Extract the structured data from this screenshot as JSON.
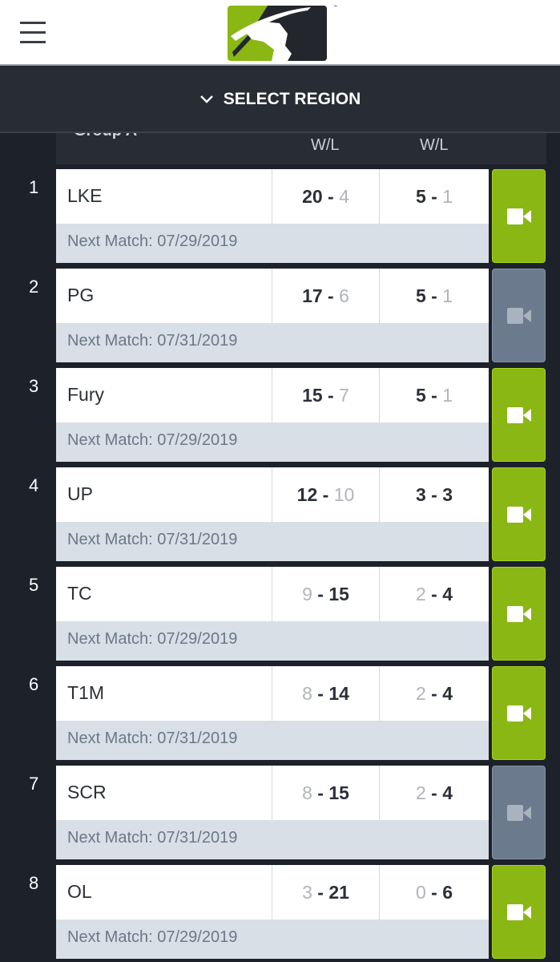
{
  "header": {
    "menu_icon": "hamburger-icon",
    "logo": "league-logo",
    "tm": "™"
  },
  "region": {
    "label": "SELECT REGION",
    "icon": "chevron-down-icon"
  },
  "table_header": {
    "group": "Group A",
    "col1": "W/L",
    "col2": "W/L"
  },
  "colors": {
    "green": "#8ab714",
    "gray": "#6b7a8c",
    "dark": "#272c35"
  },
  "rows": [
    {
      "rank": "1",
      "team": "LKE",
      "w1": "20",
      "l1": "4",
      "w2": "5",
      "l2": "1",
      "next": "Next Match: 07/29/2019",
      "video_active": true
    },
    {
      "rank": "2",
      "team": "PG",
      "w1": "17",
      "l1": "6",
      "w2": "5",
      "l2": "1",
      "next": "Next Match: 07/31/2019",
      "video_active": false
    },
    {
      "rank": "3",
      "team": "Fury",
      "w1": "15",
      "l1": "7",
      "w2": "5",
      "l2": "1",
      "next": "Next Match: 07/29/2019",
      "video_active": true
    },
    {
      "rank": "4",
      "team": "UP",
      "w1": "12",
      "l1": "10",
      "w2": "3",
      "l2": "3",
      "next": "Next Match: 07/31/2019",
      "video_active": true
    },
    {
      "rank": "5",
      "team": "TC",
      "w1": "9",
      "l1": "15",
      "w2": "2",
      "l2": "4",
      "next": "Next Match: 07/29/2019",
      "video_active": true
    },
    {
      "rank": "6",
      "team": "T1M",
      "w1": "8",
      "l1": "14",
      "w2": "2",
      "l2": "4",
      "next": "Next Match: 07/31/2019",
      "video_active": true
    },
    {
      "rank": "7",
      "team": "SCR",
      "w1": "8",
      "l1": "15",
      "w2": "2",
      "l2": "4",
      "next": "Next Match: 07/31/2019",
      "video_active": false
    },
    {
      "rank": "8",
      "team": "OL",
      "w1": "3",
      "l1": "21",
      "w2": "0",
      "l2": "6",
      "next": "Next Match: 07/29/2019",
      "video_active": true
    }
  ]
}
